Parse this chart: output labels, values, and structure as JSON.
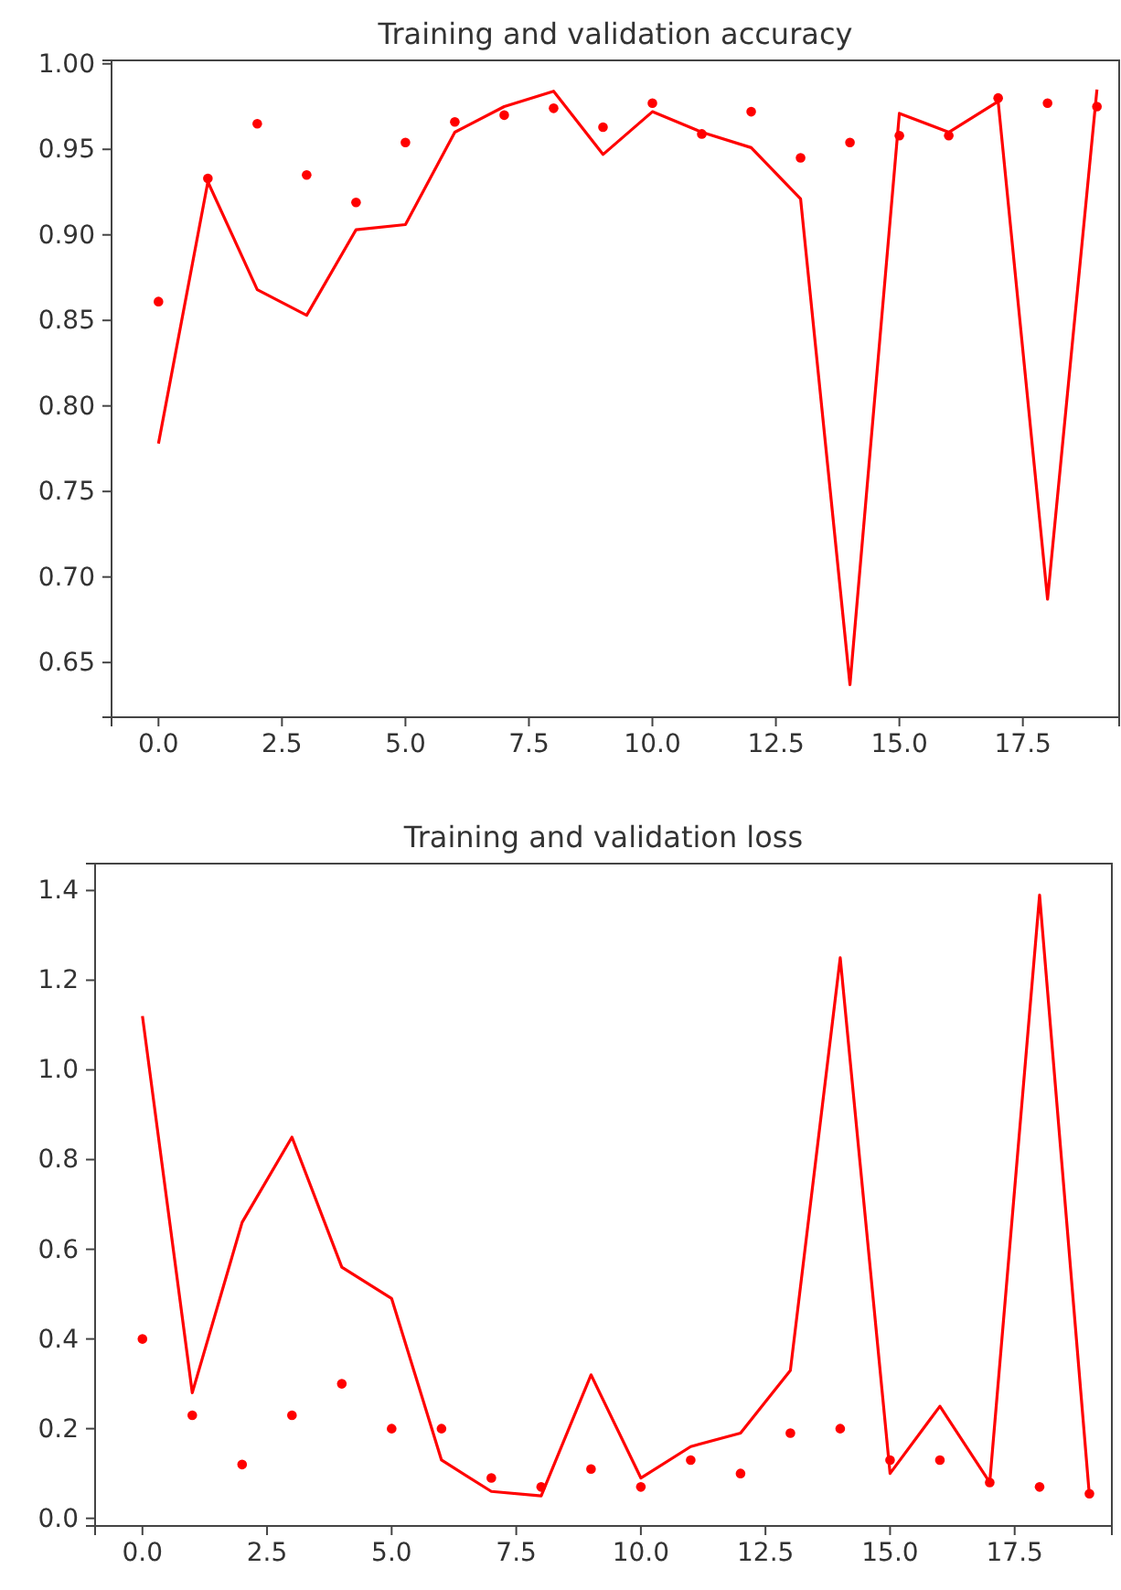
{
  "chart_data": [
    {
      "type": "line",
      "title": "Training and validation accuracy",
      "x": [
        0,
        1,
        2,
        3,
        4,
        5,
        6,
        7,
        8,
        9,
        10,
        11,
        12,
        13,
        14,
        15,
        16,
        17,
        18,
        19
      ],
      "series": [
        {
          "type": "scatter",
          "marker": "circle",
          "color": "#ff0000",
          "values": [
            0.861,
            0.933,
            0.965,
            0.935,
            0.919,
            0.954,
            0.966,
            0.97,
            0.974,
            0.963,
            0.977,
            0.959,
            0.972,
            0.945,
            0.954,
            0.958,
            0.958,
            0.98,
            0.977,
            0.975
          ]
        },
        {
          "color": "#ff0000",
          "values": [
            0.778,
            0.931,
            0.868,
            0.853,
            0.903,
            0.906,
            0.96,
            0.975,
            0.984,
            0.947,
            0.972,
            0.96,
            0.951,
            0.921,
            0.637,
            0.971,
            0.96,
            0.978,
            0.687,
            0.985
          ]
        }
      ],
      "xlim": [
        -0.95,
        19.45
      ],
      "xticks": [
        {
          "value": 0,
          "label": "0.0"
        },
        {
          "value": 2.5,
          "label": "2.5"
        },
        {
          "value": 5,
          "label": "5.0"
        },
        {
          "value": 7.5,
          "label": "7.5"
        },
        {
          "value": 10,
          "label": "10.0"
        },
        {
          "value": 12.5,
          "label": "12.5"
        },
        {
          "value": 15,
          "label": "15.0"
        },
        {
          "value": 17.5,
          "label": "17.5"
        }
      ],
      "ylim": [
        0.618,
        1.002
      ],
      "yticks": [
        {
          "value": 0.65,
          "label": "0.65"
        },
        {
          "value": 0.7,
          "label": "0.70"
        },
        {
          "value": 0.75,
          "label": "0.75"
        },
        {
          "value": 0.8,
          "label": "0.80"
        },
        {
          "value": 0.85,
          "label": "0.85"
        },
        {
          "value": 0.9,
          "label": "0.90"
        },
        {
          "value": 0.95,
          "label": "0.95"
        },
        {
          "value": 1,
          "label": "1.00"
        }
      ]
    },
    {
      "type": "line",
      "title": "Training and validation loss",
      "x": [
        0,
        1,
        2,
        3,
        4,
        5,
        6,
        7,
        8,
        9,
        10,
        11,
        12,
        13,
        14,
        15,
        16,
        17,
        18,
        19
      ],
      "series": [
        {
          "type": "scatter",
          "marker": "circle",
          "color": "#ff0000",
          "values": [
            0.4,
            0.23,
            0.12,
            0.23,
            0.3,
            0.2,
            0.2,
            0.09,
            0.07,
            0.11,
            0.07,
            0.13,
            0.1,
            0.19,
            0.2,
            0.13,
            0.13,
            0.08,
            0.07,
            0.055
          ]
        },
        {
          "color": "#ff0000",
          "values": [
            1.12,
            0.28,
            0.66,
            0.85,
            0.56,
            0.49,
            0.13,
            0.06,
            0.05,
            0.32,
            0.09,
            0.16,
            0.19,
            0.33,
            1.25,
            0.1,
            0.25,
            0.08,
            1.39,
            0.05
          ]
        }
      ],
      "xlim": [
        -0.95,
        19.45
      ],
      "xticks": [
        {
          "value": 0,
          "label": "0.0"
        },
        {
          "value": 2.5,
          "label": "2.5"
        },
        {
          "value": 5,
          "label": "5.0"
        },
        {
          "value": 7.5,
          "label": "7.5"
        },
        {
          "value": 10,
          "label": "10.0"
        },
        {
          "value": 12.5,
          "label": "12.5"
        },
        {
          "value": 15,
          "label": "15.0"
        },
        {
          "value": 17.5,
          "label": "17.5"
        }
      ],
      "ylim": [
        -0.017,
        1.46
      ],
      "yticks": [
        {
          "value": 0,
          "label": "0.0"
        },
        {
          "value": 0.2,
          "label": "0.2"
        },
        {
          "value": 0.4,
          "label": "0.4"
        },
        {
          "value": 0.6,
          "label": "0.6"
        },
        {
          "value": 0.8,
          "label": "0.8"
        },
        {
          "value": 1,
          "label": "1.0"
        },
        {
          "value": 1.2,
          "label": "1.2"
        },
        {
          "value": 1.4,
          "label": "1.4"
        }
      ]
    }
  ]
}
